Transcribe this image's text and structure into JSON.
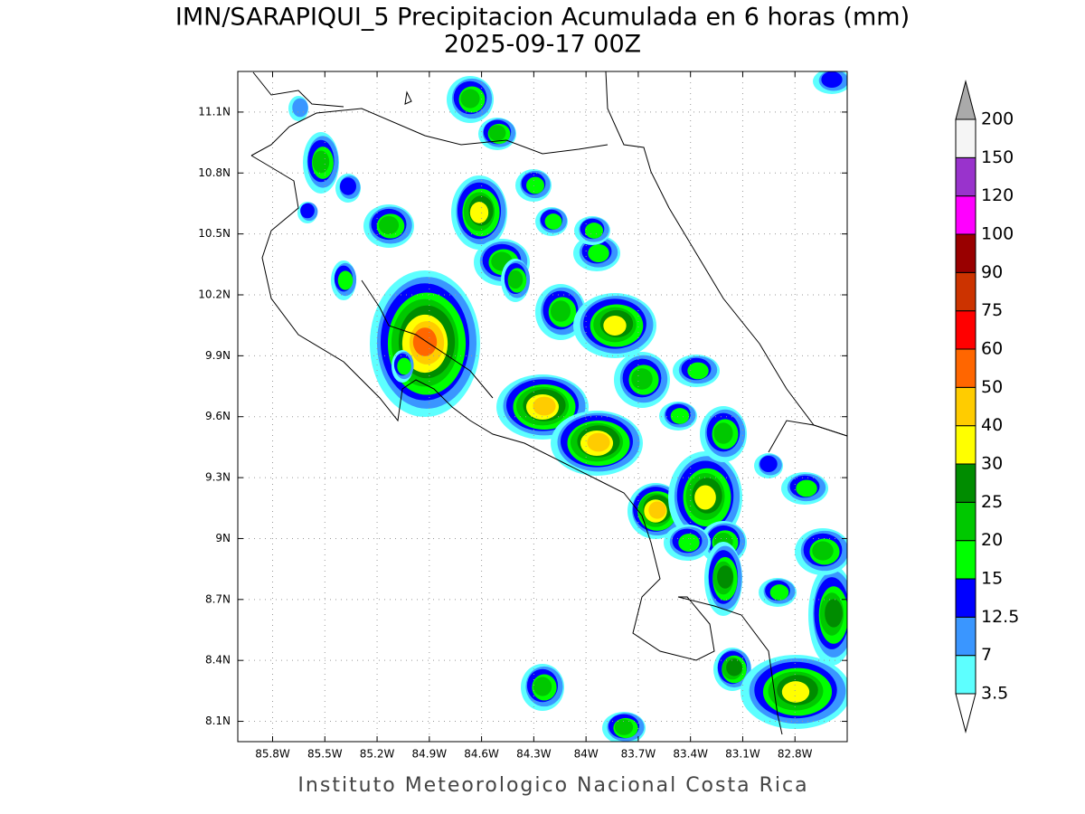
{
  "title": "IMN/SARAPIQUI_5 Precipitacion Acumulada en 6 horas (mm)",
  "subtitle": "2025-09-17 00Z",
  "footer": "Instituto Meteorologico Nacional Costa Rica",
  "map": {
    "xlim": [
      -86.0,
      -82.5
    ],
    "ylim": [
      8.0,
      11.3
    ],
    "grid": true,
    "xticks": [
      {
        "value": -85.8,
        "label": "85.8W"
      },
      {
        "value": -85.5,
        "label": "85.5W"
      },
      {
        "value": -85.2,
        "label": "85.2W"
      },
      {
        "value": -84.9,
        "label": "84.9W"
      },
      {
        "value": -84.6,
        "label": "84.6W"
      },
      {
        "value": -84.3,
        "label": "84.3W"
      },
      {
        "value": -84.0,
        "label": "84W"
      },
      {
        "value": -83.7,
        "label": "83.7W"
      },
      {
        "value": -83.4,
        "label": "83.4W"
      },
      {
        "value": -83.1,
        "label": "83.1W"
      },
      {
        "value": -82.8,
        "label": "82.8W"
      }
    ],
    "yticks": [
      {
        "value": 8.1,
        "label": "8.1N"
      },
      {
        "value": 8.4,
        "label": "8.4N"
      },
      {
        "value": 8.7,
        "label": "8.7N"
      },
      {
        "value": 9.0,
        "label": "9N"
      },
      {
        "value": 9.3,
        "label": "9.3N"
      },
      {
        "value": 9.6,
        "label": "9.6N"
      },
      {
        "value": 9.9,
        "label": "9.9N"
      },
      {
        "value": 10.2,
        "label": "10.2N"
      },
      {
        "value": 10.5,
        "label": "10.5N"
      },
      {
        "value": 10.8,
        "label": "10.8N"
      },
      {
        "value": 11.1,
        "label": "11.1N"
      }
    ]
  },
  "colorbar": {
    "levels": [
      3.5,
      7,
      12.5,
      15,
      20,
      25,
      30,
      40,
      50,
      60,
      75,
      90,
      100,
      120,
      150,
      200
    ],
    "colors": [
      "#5dffff",
      "#3a96ff",
      "#0000ff",
      "#00ff00",
      "#00c800",
      "#008c00",
      "#ffff00",
      "#ffcc00",
      "#ff6600",
      "#ff0000",
      "#cc3300",
      "#990000",
      "#ff00ff",
      "#9933cc",
      "#f5f5f5"
    ],
    "under_color": "#ffffff",
    "over_color": "#aaaaaa"
  }
}
